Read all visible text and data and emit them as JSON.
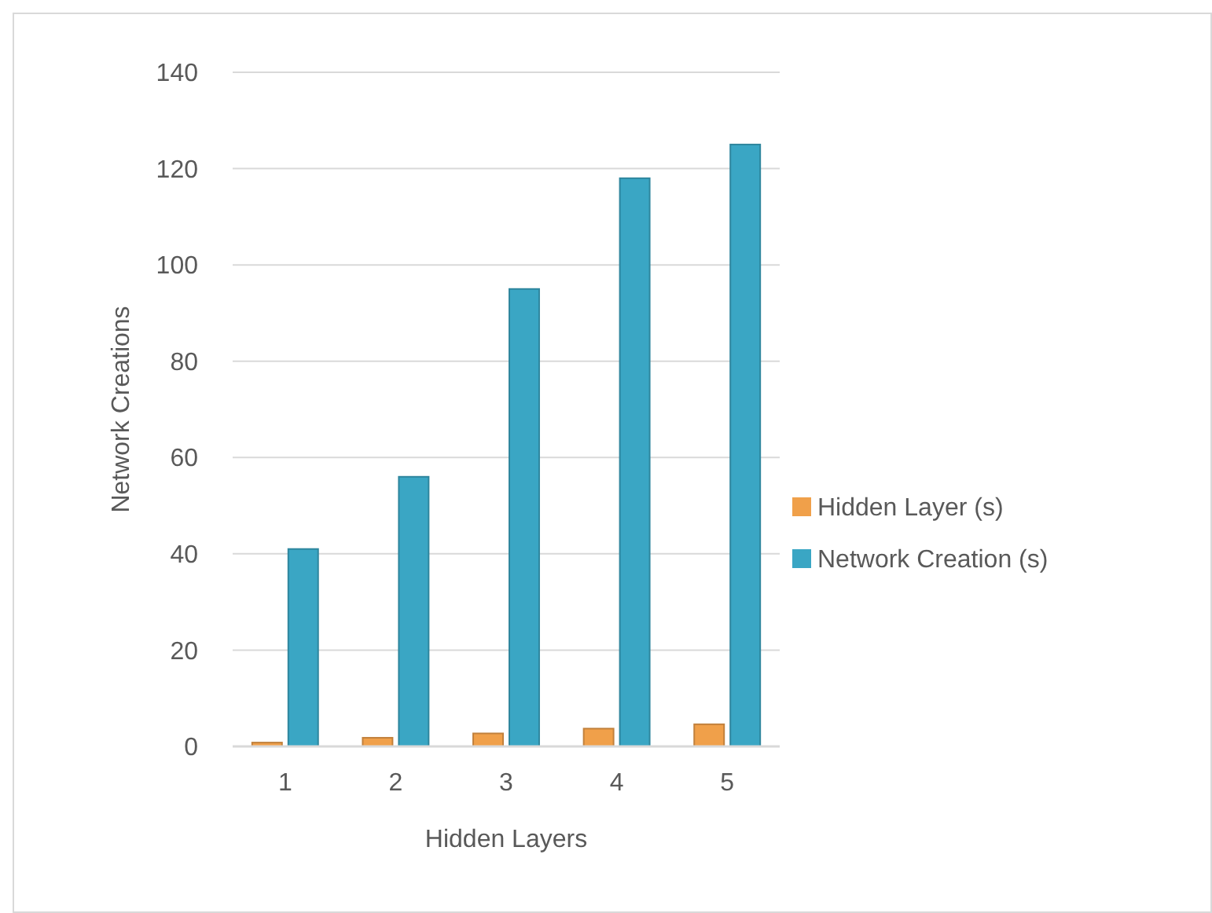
{
  "chart_data": {
    "type": "bar",
    "xlabel": "Hidden Layers",
    "ylabel": "Network Creations",
    "categories": [
      "1",
      "2",
      "3",
      "4",
      "5"
    ],
    "series": [
      {
        "name": "Hidden Layer (s)",
        "color": "#f0a04a",
        "values": [
          0.8,
          1.8,
          2.7,
          3.7,
          4.6
        ]
      },
      {
        "name": "Network Creation (s)",
        "color": "#3aa6c4",
        "values": [
          41,
          56,
          95,
          118,
          125
        ]
      }
    ],
    "ylim": [
      0,
      140
    ],
    "yticks": [
      0,
      20,
      40,
      60,
      80,
      100,
      120,
      140
    ],
    "grid": "y",
    "legend": "right"
  }
}
